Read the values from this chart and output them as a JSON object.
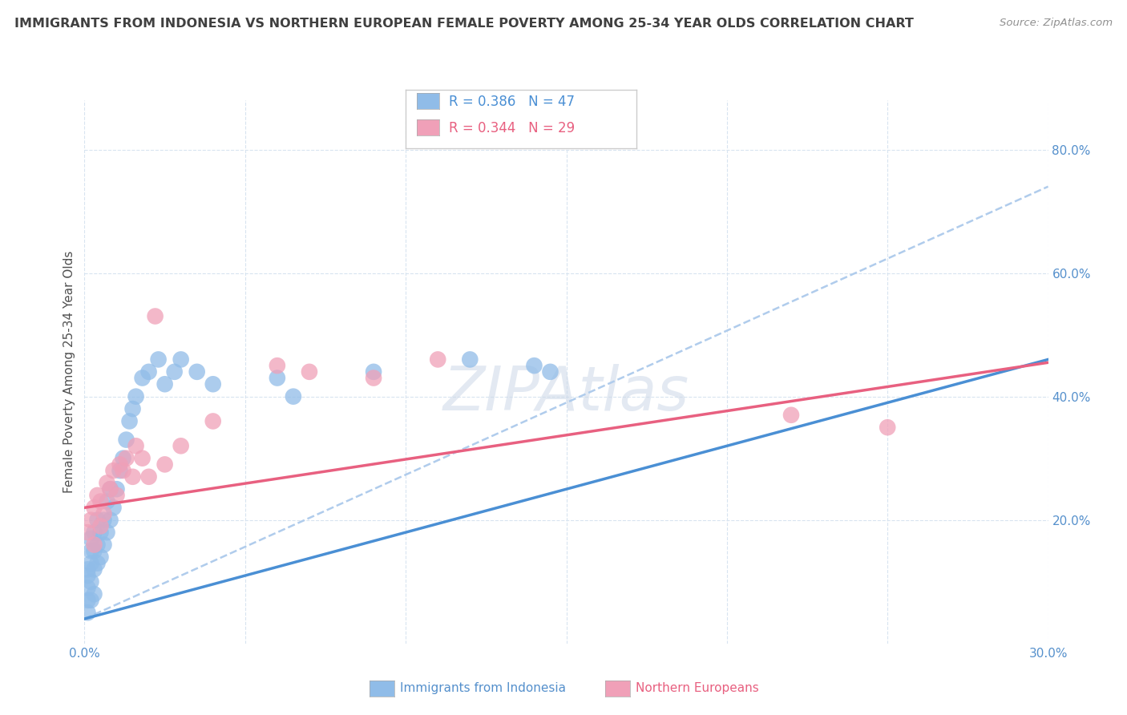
{
  "title": "IMMIGRANTS FROM INDONESIA VS NORTHERN EUROPEAN FEMALE POVERTY AMONG 25-34 YEAR OLDS CORRELATION CHART",
  "source": "Source: ZipAtlas.com",
  "ylabel": "Female Poverty Among 25-34 Year Olds",
  "xlim": [
    0.0,
    0.3
  ],
  "ylim": [
    0.0,
    0.88
  ],
  "right_ytick_labels": [
    "20.0%",
    "40.0%",
    "60.0%",
    "80.0%"
  ],
  "right_ytick_values": [
    0.2,
    0.4,
    0.6,
    0.8
  ],
  "bottom_xtick_labels": [
    "0.0%",
    "",
    "",
    "",
    "",
    "",
    "30.0%"
  ],
  "bottom_xtick_values": [
    0.0,
    0.05,
    0.1,
    0.15,
    0.2,
    0.25,
    0.3
  ],
  "legend_R1": "R = 0.386",
  "legend_N1": "N = 47",
  "legend_R2": "R = 0.344",
  "legend_N2": "N = 29",
  "color_indonesia": "#90bce8",
  "color_northern": "#f0a0b8",
  "color_indonesia_line": "#4a8fd4",
  "color_northern_line": "#e86080",
  "color_dashed": "#b0ccec",
  "color_axis_labels": "#5590cc",
  "color_title": "#404040",
  "color_source": "#909090",
  "color_watermark": "#ccd8e8",
  "watermark": "ZIPAtlas",
  "background_color": "#ffffff",
  "grid_color": "#d8e4f0",
  "indonesia_x": [
    0.001,
    0.001,
    0.001,
    0.001,
    0.001,
    0.002,
    0.002,
    0.002,
    0.002,
    0.002,
    0.003,
    0.003,
    0.003,
    0.003,
    0.004,
    0.004,
    0.004,
    0.005,
    0.005,
    0.006,
    0.006,
    0.007,
    0.007,
    0.008,
    0.008,
    0.009,
    0.01,
    0.011,
    0.012,
    0.013,
    0.014,
    0.015,
    0.016,
    0.018,
    0.02,
    0.023,
    0.025,
    0.028,
    0.03,
    0.035,
    0.04,
    0.06,
    0.065,
    0.09,
    0.12,
    0.14,
    0.145
  ],
  "indonesia_y": [
    0.05,
    0.07,
    0.09,
    0.11,
    0.12,
    0.07,
    0.1,
    0.13,
    0.15,
    0.17,
    0.08,
    0.12,
    0.15,
    0.18,
    0.13,
    0.16,
    0.2,
    0.14,
    0.18,
    0.16,
    0.2,
    0.18,
    0.23,
    0.2,
    0.25,
    0.22,
    0.25,
    0.28,
    0.3,
    0.33,
    0.36,
    0.38,
    0.4,
    0.43,
    0.44,
    0.46,
    0.42,
    0.44,
    0.46,
    0.44,
    0.42,
    0.43,
    0.4,
    0.44,
    0.46,
    0.45,
    0.44
  ],
  "northern_x": [
    0.001,
    0.002,
    0.003,
    0.003,
    0.004,
    0.005,
    0.005,
    0.006,
    0.007,
    0.008,
    0.009,
    0.01,
    0.011,
    0.012,
    0.013,
    0.015,
    0.016,
    0.018,
    0.02,
    0.022,
    0.025,
    0.03,
    0.04,
    0.06,
    0.07,
    0.09,
    0.11,
    0.22,
    0.25
  ],
  "northern_y": [
    0.18,
    0.2,
    0.16,
    0.22,
    0.24,
    0.19,
    0.23,
    0.21,
    0.26,
    0.25,
    0.28,
    0.24,
    0.29,
    0.28,
    0.3,
    0.27,
    0.32,
    0.3,
    0.27,
    0.53,
    0.29,
    0.32,
    0.36,
    0.45,
    0.44,
    0.43,
    0.46,
    0.37,
    0.35
  ],
  "indonesia_trend": [
    0.0,
    0.3,
    0.04,
    0.46
  ],
  "northern_trend": [
    0.0,
    0.3,
    0.22,
    0.455
  ],
  "dashed_trend": [
    0.0,
    0.3,
    0.04,
    0.74
  ]
}
